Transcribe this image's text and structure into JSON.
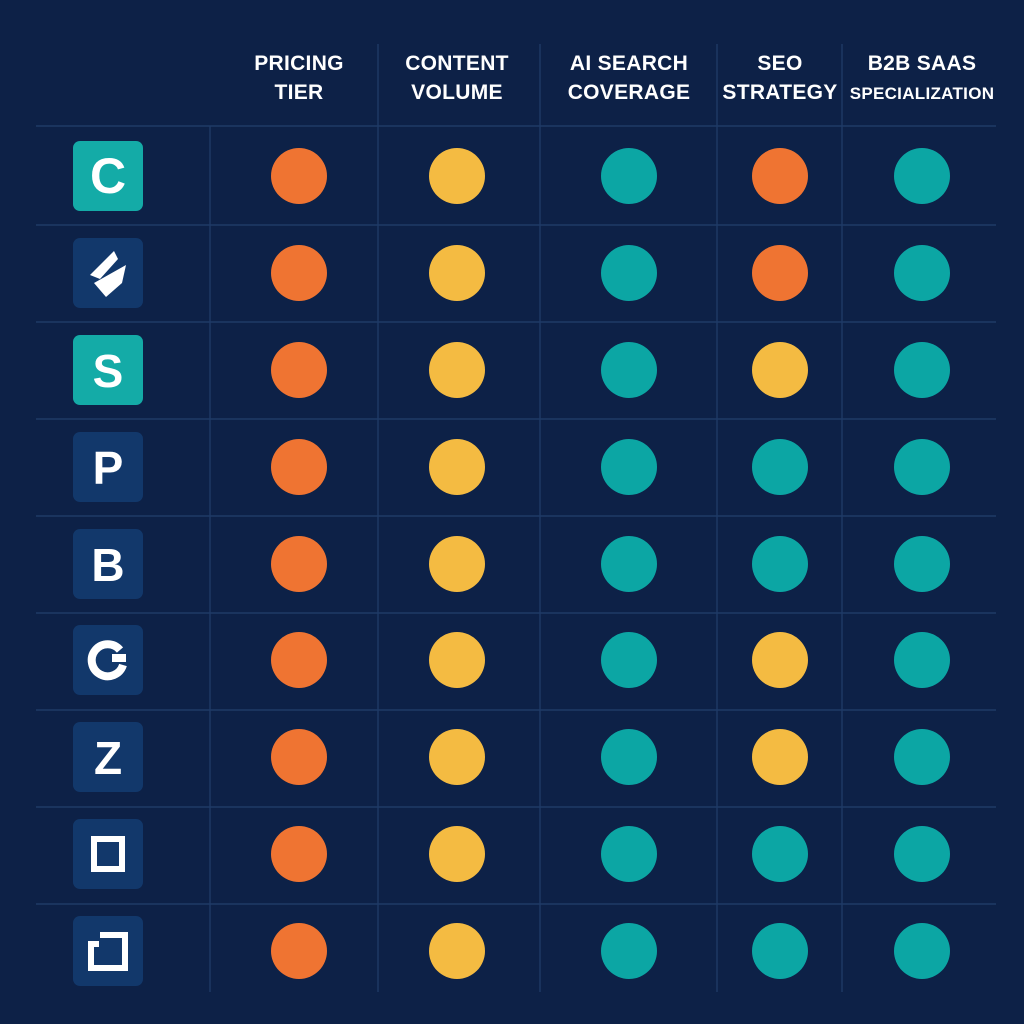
{
  "colors": {
    "background": "#0d2147",
    "grid": "#1f3a66",
    "orange": "#ef7432",
    "yellow": "#f4bb42",
    "teal": "#0ca6a4",
    "logo_navy": "#12386b",
    "logo_teal": "#14aba7"
  },
  "chart_data": {
    "type": "table",
    "columns": [
      {
        "key": "pricing",
        "lines": [
          "PRICING",
          "TIER"
        ]
      },
      {
        "key": "content",
        "lines": [
          "CONTENT",
          "VOLUME"
        ]
      },
      {
        "key": "ai",
        "lines": [
          "AI SEARCH",
          "COVERAGE"
        ]
      },
      {
        "key": "seo",
        "lines": [
          "SEO",
          "STRATEGY"
        ]
      },
      {
        "key": "b2b",
        "lines": [
          "B2B SAAS",
          "SPECIALIZATION"
        ]
      }
    ],
    "rows": [
      {
        "logo": {
          "label": "C",
          "icon": "c-logo-icon",
          "bg": "teal"
        },
        "ratings": [
          "orange",
          "yellow",
          "teal",
          "orange",
          "teal"
        ]
      },
      {
        "logo": {
          "label": "",
          "icon": "diamond-logo-icon",
          "bg": "navy"
        },
        "ratings": [
          "orange",
          "yellow",
          "teal",
          "orange",
          "teal"
        ]
      },
      {
        "logo": {
          "label": "S",
          "icon": "s-logo-icon",
          "bg": "teal"
        },
        "ratings": [
          "orange",
          "yellow",
          "teal",
          "yellow",
          "teal"
        ]
      },
      {
        "logo": {
          "label": "P",
          "icon": "p-logo-icon",
          "bg": "navy"
        },
        "ratings": [
          "orange",
          "yellow",
          "teal",
          "teal",
          "teal"
        ]
      },
      {
        "logo": {
          "label": "B",
          "icon": "b-logo-icon",
          "bg": "navy"
        },
        "ratings": [
          "orange",
          "yellow",
          "teal",
          "teal",
          "teal"
        ]
      },
      {
        "logo": {
          "label": "",
          "icon": "ring-logo-icon",
          "bg": "navy"
        },
        "ratings": [
          "orange",
          "yellow",
          "teal",
          "yellow",
          "teal"
        ]
      },
      {
        "logo": {
          "label": "Z",
          "icon": "z-logo-icon",
          "bg": "navy"
        },
        "ratings": [
          "orange",
          "yellow",
          "teal",
          "yellow",
          "teal"
        ]
      },
      {
        "logo": {
          "label": "",
          "icon": "square-logo-icon",
          "bg": "navy"
        },
        "ratings": [
          "orange",
          "yellow",
          "teal",
          "teal",
          "teal"
        ]
      },
      {
        "logo": {
          "label": "",
          "icon": "bracket-square-logo-icon",
          "bg": "navy"
        },
        "ratings": [
          "orange",
          "yellow",
          "teal",
          "teal",
          "teal"
        ]
      }
    ]
  }
}
